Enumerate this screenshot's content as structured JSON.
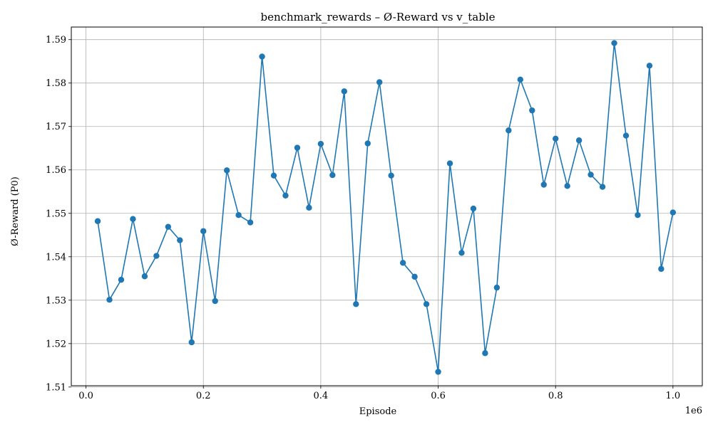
{
  "chart_data": {
    "type": "line",
    "title": "benchmark_rewards – Ø-Reward vs v_table",
    "xlabel": "Episode",
    "ylabel": "Ø-Reward (P0)",
    "x_offset_label": "1e6",
    "xlim": [
      -0.025,
      1.05
    ],
    "ylim": [
      1.5103,
      1.5929
    ],
    "x_ticks": [
      0.0,
      0.2,
      0.4,
      0.6,
      0.8,
      1.0
    ],
    "x_tick_labels": [
      "0.0",
      "0.2",
      "0.4",
      "0.6",
      "0.8",
      "1.0"
    ],
    "y_ticks": [
      1.51,
      1.52,
      1.53,
      1.54,
      1.55,
      1.56,
      1.57,
      1.58,
      1.59
    ],
    "y_tick_labels": [
      "1.51",
      "1.52",
      "1.53",
      "1.54",
      "1.55",
      "1.56",
      "1.57",
      "1.58",
      "1.59"
    ],
    "grid": true,
    "color": "#1f77b4",
    "series": [
      {
        "x": [
          0.02,
          0.04,
          0.06,
          0.08,
          0.1,
          0.12,
          0.14,
          0.16,
          0.18,
          0.2,
          0.22,
          0.24,
          0.26,
          0.28,
          0.3,
          0.32,
          0.34,
          0.36,
          0.38,
          0.4,
          0.42,
          0.44,
          0.46,
          0.48,
          0.5,
          0.52,
          0.54,
          0.56,
          0.58,
          0.6,
          0.62,
          0.64,
          0.66,
          0.68,
          0.7,
          0.72,
          0.74,
          0.76,
          0.78,
          0.8,
          0.82,
          0.84,
          0.86,
          0.88,
          0.9,
          0.92,
          0.94,
          0.96,
          0.98,
          1.0
        ],
        "y": [
          1.5482,
          1.5301,
          1.5347,
          1.5487,
          1.5355,
          1.5402,
          1.5469,
          1.5438,
          1.5203,
          1.5459,
          1.5298,
          1.5599,
          1.5496,
          1.5479,
          1.5861,
          1.5587,
          1.5541,
          1.5651,
          1.5513,
          1.566,
          1.5588,
          1.5781,
          1.5291,
          1.5661,
          1.5802,
          1.5587,
          1.5386,
          1.5354,
          1.5291,
          1.5135,
          1.5615,
          1.5409,
          1.5511,
          1.5178,
          1.5329,
          1.5691,
          1.5808,
          1.5737,
          1.5566,
          1.5672,
          1.5563,
          1.5668,
          1.5589,
          1.5561,
          1.5892,
          1.5679,
          1.5496,
          1.584,
          1.5372,
          1.5502
        ]
      }
    ]
  }
}
